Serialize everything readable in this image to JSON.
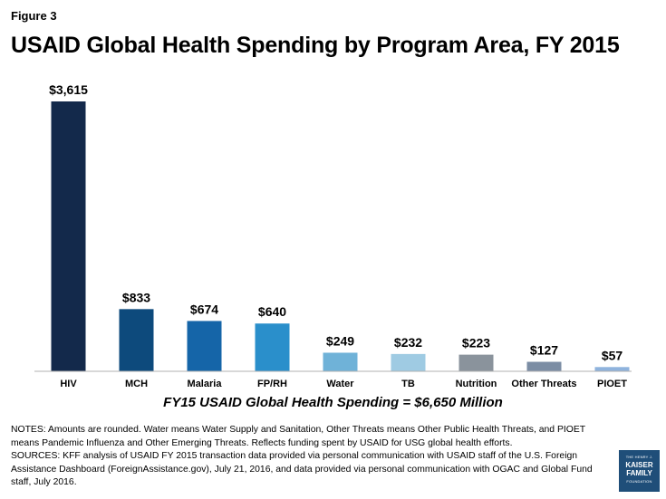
{
  "figure_label": "Figure 3",
  "chart_data": {
    "type": "bar",
    "title": "USAID Global Health Spending by Program Area, FY 2015",
    "categories": [
      "HIV",
      "MCH",
      "Malaria",
      "FP/RH",
      "Water",
      "TB",
      "Nutrition",
      "Other Threats",
      "PIOET"
    ],
    "values": [
      3615,
      833,
      674,
      640,
      249,
      232,
      223,
      127,
      57
    ],
    "value_labels": [
      "$3,615",
      "$833",
      "$674",
      "$640",
      "$249",
      "$232",
      "$223",
      "$127",
      "$57"
    ],
    "colors": [
      "#13294b",
      "#0d4a7c",
      "#1565a8",
      "#2a8fcb",
      "#6fb2d8",
      "#9fcbe3",
      "#8a939c",
      "#7b8da4",
      "#8fb3dd"
    ],
    "xlabel": "FY15 USAID Global Health Spending = $6,650 Million",
    "ylabel": "",
    "ylim": [
      0,
      3615
    ],
    "grid": false
  },
  "notes": {
    "notes_text": "NOTES: Amounts are rounded. Water means Water Supply and Sanitation, Other Threats means Other Public Health Threats, and PIOET means Pandemic Influenza and Other Emerging Threats. Reflects funding spent by USAID for USG global health efforts.",
    "sources_text": "SOURCES: KFF analysis of USAID FY 2015 transaction data provided via personal communication with USAID staff of the U.S. Foreign Assistance Dashboard (ForeignAssistance.gov), July 21, 2016, and data provided via personal communication with OGAC and Global Fund staff, July 2016."
  },
  "logo": {
    "line1": "THE HENRY J.",
    "line2": "KAISER",
    "line3": "FAMILY",
    "line4": "FOUNDATION"
  }
}
